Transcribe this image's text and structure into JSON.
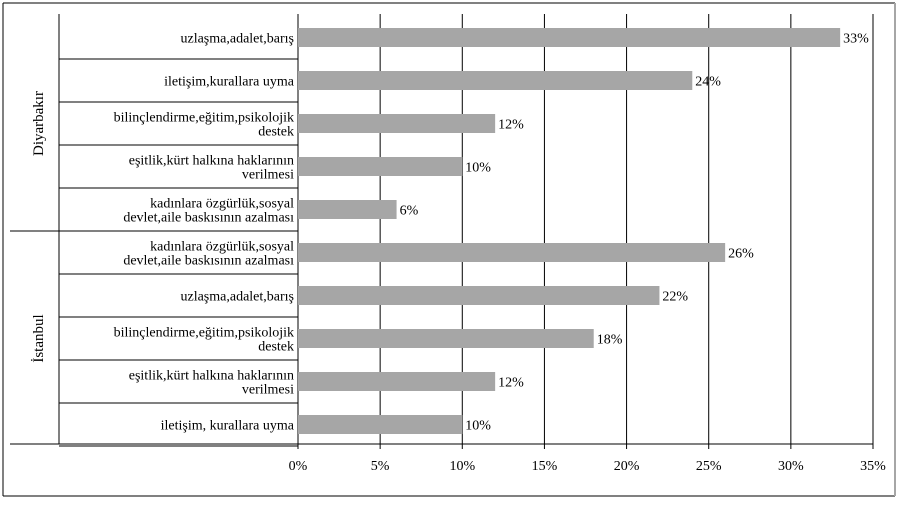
{
  "chart_data": {
    "type": "bar",
    "orientation": "horizontal",
    "groups": [
      {
        "name": "Diyarbakır",
        "categories": [
          [
            "uzlaşma,adalet,barış"
          ],
          [
            "iletişim,kurallara uyma"
          ],
          [
            "bilinçlendirme,eğitim,psikolojik",
            "destek"
          ],
          [
            "eşitlik,kürt halkına haklarının",
            "verilmesi"
          ],
          [
            "kadınlara özgürlük,sosyal",
            "devlet,aile baskısının azalması"
          ]
        ],
        "values": [
          33,
          24,
          12,
          10,
          6
        ],
        "value_labels": [
          "33%",
          "24%",
          "12%",
          "10%",
          "6%"
        ]
      },
      {
        "name": "İstanbul",
        "categories": [
          [
            "kadınlara özgürlük,sosyal",
            "devlet,aile baskısının azalması"
          ],
          [
            "uzlaşma,adalet,barış"
          ],
          [
            "bilinçlendirme,eğitim,psikolojik",
            "destek"
          ],
          [
            "eşitlik,kürt halkına haklarının",
            "verilmesi"
          ],
          [
            "iletişim, kurallara uyma"
          ]
        ],
        "values": [
          26,
          22,
          18,
          12,
          10
        ],
        "value_labels": [
          "26%",
          "22%",
          "18%",
          "12%",
          "10%"
        ]
      }
    ],
    "xlim": [
      0,
      35
    ],
    "xticks": [
      0,
      5,
      10,
      15,
      20,
      25,
      30,
      35
    ],
    "xtick_labels": [
      "0%",
      "5%",
      "10%",
      "15%",
      "20%",
      "25%",
      "30%",
      "35%"
    ],
    "grid": "vertical",
    "legend": "none",
    "colors": {
      "bar": "#a6a6a6",
      "grid": "#000000",
      "axis": "#000000",
      "frame": "#000000",
      "frame_right": "#a6a6a6"
    }
  }
}
